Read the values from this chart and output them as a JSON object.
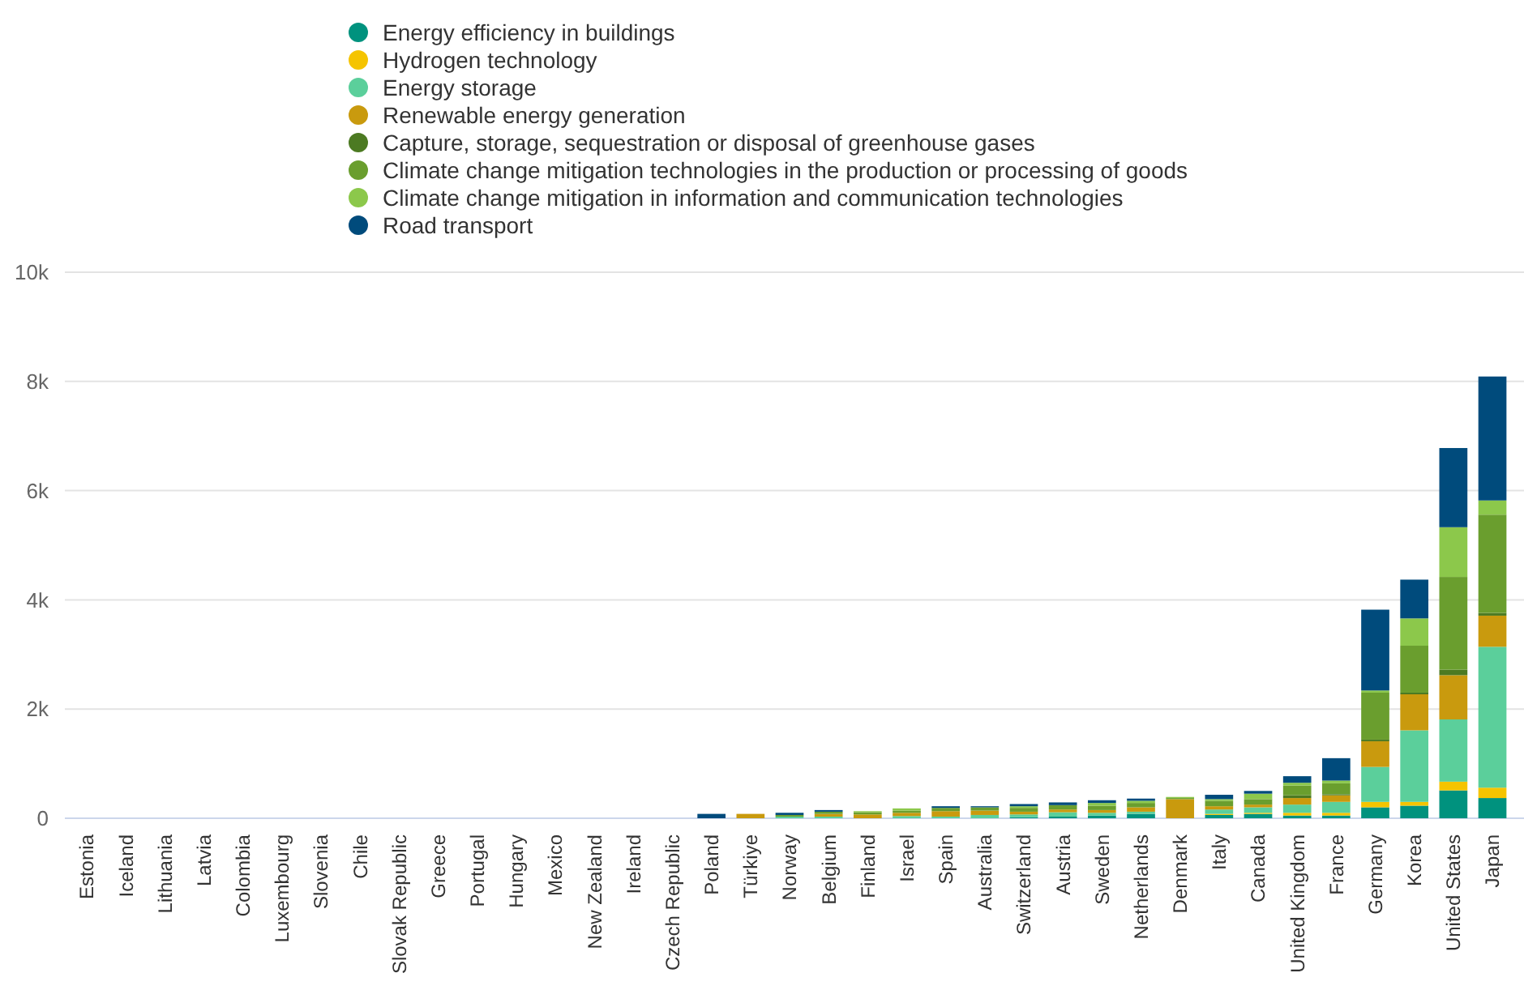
{
  "chart_data": {
    "type": "bar",
    "stacked": true,
    "legend": "top",
    "grid": "y",
    "categories": [
      "Estonia",
      "Iceland",
      "Lithuania",
      "Latvia",
      "Colombia",
      "Luxembourg",
      "Slovenia",
      "Chile",
      "Slovak Republic",
      "Greece",
      "Portugal",
      "Hungary",
      "Mexico",
      "New Zealand",
      "Ireland",
      "Czech Republic",
      "Poland",
      "Türkiye",
      "Norway",
      "Belgium",
      "Finland",
      "Israel",
      "Spain",
      "Australia",
      "Switzerland",
      "Austria",
      "Sweden",
      "Netherlands",
      "Denmark",
      "Italy",
      "Canada",
      "United Kingdom",
      "France",
      "Germany",
      "Korea",
      "United States",
      "Japan"
    ],
    "ylim": [
      0,
      10000
    ],
    "yticks": [
      {
        "value": 0,
        "label": "0"
      },
      {
        "value": 2000,
        "label": "2k"
      },
      {
        "value": 4000,
        "label": "4k"
      },
      {
        "value": 6000,
        "label": "6k"
      },
      {
        "value": 8000,
        "label": "8k"
      },
      {
        "value": 10000,
        "label": "10k"
      }
    ],
    "series": [
      {
        "name": "Energy efficiency in buildings",
        "color": "#00927e",
        "values": [
          0,
          0,
          0,
          0,
          0,
          0,
          0,
          0,
          0,
          0,
          0,
          0,
          0,
          0,
          0,
          0,
          0,
          0,
          0,
          0,
          0,
          0,
          0,
          0,
          20,
          30,
          50,
          80,
          0,
          60,
          80,
          50,
          50,
          200,
          230,
          510,
          370
        ]
      },
      {
        "name": "Hydrogen technology",
        "color": "#f5c400",
        "values": [
          0,
          0,
          0,
          0,
          0,
          0,
          0,
          0,
          0,
          0,
          0,
          0,
          0,
          0,
          0,
          0,
          0,
          0,
          0,
          0,
          0,
          0,
          0,
          0,
          0,
          0,
          0,
          0,
          0,
          20,
          20,
          50,
          50,
          100,
          70,
          160,
          190
        ]
      },
      {
        "name": "Energy storage",
        "color": "#5bcf9b",
        "values": [
          0,
          0,
          0,
          0,
          0,
          0,
          0,
          0,
          0,
          0,
          0,
          0,
          0,
          0,
          0,
          0,
          0,
          0,
          30,
          30,
          0,
          40,
          30,
          60,
          50,
          80,
          50,
          40,
          0,
          80,
          100,
          150,
          200,
          640,
          1310,
          1140,
          2580
        ]
      },
      {
        "name": "Renewable energy generation",
        "color": "#c99a0e",
        "values": [
          0,
          0,
          0,
          0,
          0,
          0,
          0,
          0,
          0,
          0,
          0,
          0,
          0,
          0,
          0,
          0,
          0,
          80,
          0,
          50,
          70,
          60,
          100,
          80,
          50,
          50,
          50,
          80,
          350,
          60,
          50,
          120,
          120,
          470,
          660,
          810,
          570
        ]
      },
      {
        "name": "Capture, storage, sequestration or disposal of greenhouse gases",
        "color": "#4c7a22",
        "values": [
          0,
          0,
          0,
          0,
          0,
          0,
          0,
          0,
          0,
          0,
          0,
          0,
          0,
          0,
          0,
          0,
          0,
          0,
          0,
          0,
          0,
          0,
          0,
          0,
          0,
          0,
          0,
          0,
          0,
          0,
          0,
          50,
          20,
          30,
          30,
          100,
          50
        ]
      },
      {
        "name": "Climate change mitigation technologies in the production or processing of goods",
        "color": "#6a9e2e",
        "values": [
          0,
          0,
          0,
          0,
          0,
          0,
          0,
          0,
          0,
          0,
          0,
          0,
          0,
          0,
          0,
          0,
          0,
          0,
          30,
          40,
          40,
          40,
          60,
          60,
          70,
          80,
          80,
          80,
          20,
          100,
          100,
          180,
          200,
          860,
          860,
          1700,
          1800
        ]
      },
      {
        "name": "Climate change mitigation in information and communication technologies",
        "color": "#8cc84b",
        "values": [
          0,
          0,
          0,
          0,
          0,
          0,
          0,
          0,
          0,
          0,
          0,
          0,
          0,
          0,
          0,
          0,
          0,
          0,
          0,
          0,
          20,
          40,
          0,
          0,
          30,
          0,
          50,
          40,
          20,
          30,
          100,
          50,
          50,
          40,
          500,
          910,
          260
        ]
      },
      {
        "name": "Road transport",
        "color": "#004b7c",
        "values": [
          0,
          0,
          0,
          0,
          0,
          0,
          0,
          0,
          0,
          0,
          0,
          0,
          0,
          0,
          0,
          0,
          80,
          0,
          40,
          30,
          0,
          0,
          30,
          20,
          40,
          50,
          50,
          40,
          0,
          80,
          50,
          120,
          410,
          1480,
          710,
          1450,
          2270
        ]
      }
    ]
  }
}
